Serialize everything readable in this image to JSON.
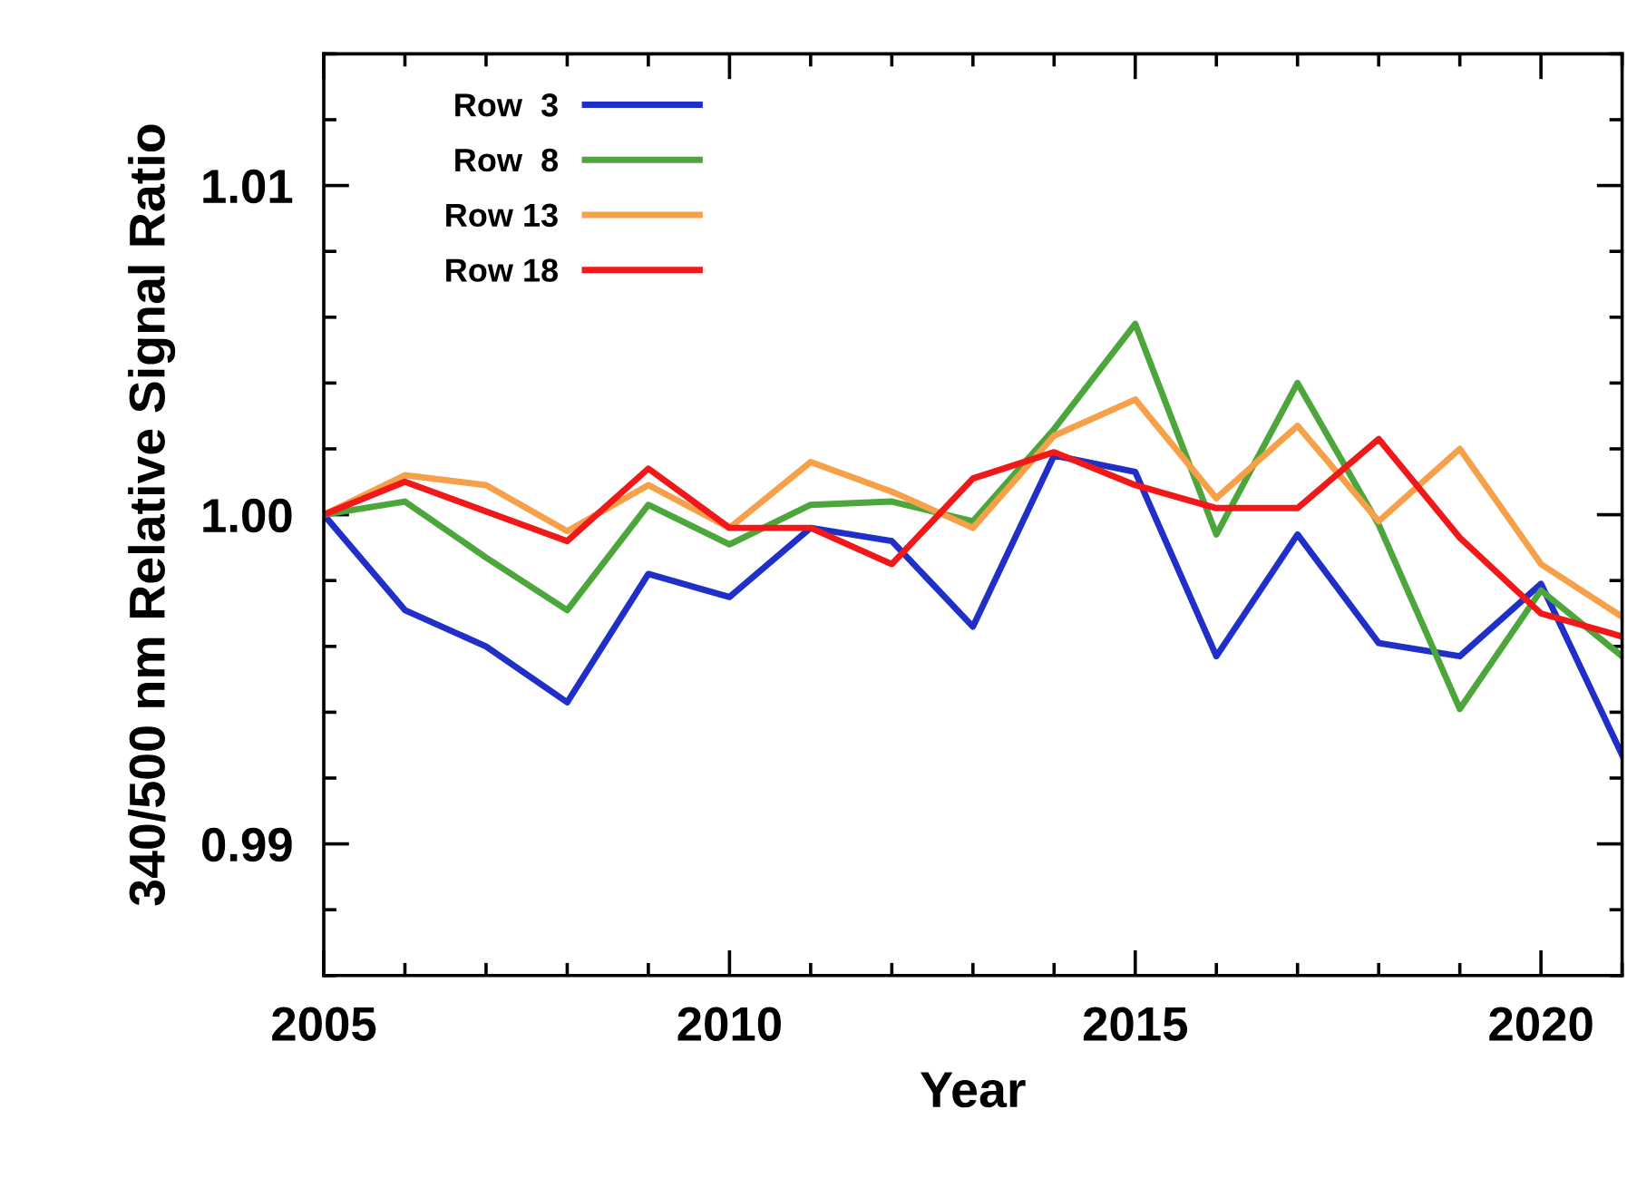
{
  "chart_data": {
    "type": "line",
    "xlabel": "Year",
    "ylabel": "340/500 nm Relative Signal Ratio",
    "x": [
      2005,
      2006,
      2007,
      2008,
      2009,
      2010,
      2011,
      2012,
      2013,
      2014,
      2015,
      2016,
      2017,
      2018,
      2019,
      2020,
      2021
    ],
    "series": [
      {
        "name": "Row  3",
        "color": "#1f2fc8",
        "values": [
          1.0,
          0.9971,
          0.996,
          0.9943,
          0.9982,
          0.9975,
          0.9996,
          0.9992,
          0.9966,
          1.0018,
          1.0013,
          0.9957,
          0.9994,
          0.9961,
          0.9957,
          0.9979,
          0.9927
        ]
      },
      {
        "name": "Row  8",
        "color": "#4ca63c",
        "values": [
          1.0,
          1.0004,
          0.9987,
          0.9971,
          1.0003,
          0.9991,
          1.0003,
          1.0004,
          0.9998,
          1.0026,
          1.0058,
          0.9994,
          1.004,
          0.9997,
          0.9941,
          0.9977,
          0.9957
        ]
      },
      {
        "name": "Row 13",
        "color": "#f7a04a",
        "values": [
          1.0,
          1.0012,
          1.0009,
          0.9995,
          1.0009,
          0.9996,
          1.0016,
          1.0007,
          0.9996,
          1.0024,
          1.0035,
          1.0005,
          1.0027,
          0.9998,
          1.002,
          0.9985,
          0.9969
        ]
      },
      {
        "name": "Row 18",
        "color": "#f01818",
        "values": [
          1.0,
          1.001,
          1.0001,
          0.9992,
          1.0014,
          0.9996,
          0.9996,
          0.9985,
          1.0011,
          1.0019,
          1.0009,
          1.0002,
          1.0002,
          1.0023,
          0.9993,
          0.997,
          0.9963
        ]
      }
    ],
    "xlim": [
      2005,
      2021
    ],
    "xticks": [
      2005,
      2010,
      2015,
      2020
    ],
    "ylim": [
      0.986,
      1.014
    ],
    "yticks": [
      {
        "value": 0.99,
        "label": "0.99"
      },
      {
        "value": 1.0,
        "label": "1.00"
      },
      {
        "value": 1.01,
        "label": "1.01"
      }
    ],
    "grid": false,
    "legend": "top left",
    "marker": "none",
    "line_style": "solid"
  }
}
